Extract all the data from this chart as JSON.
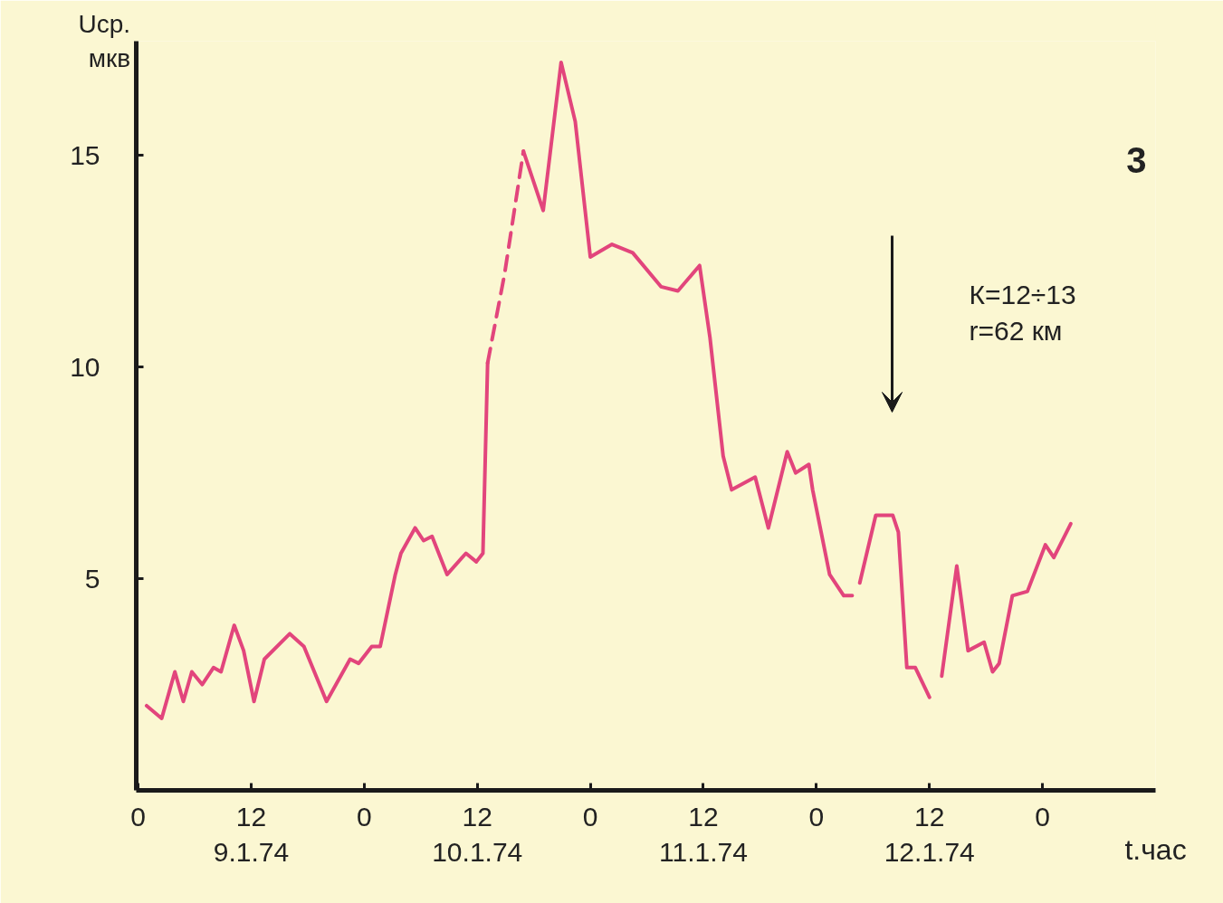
{
  "chart_data": {
    "type": "line",
    "xlabel": "t.час",
    "ylabel": "Uср. мкв",
    "xlim": [
      "1974-01-08T23:48",
      "1974-01-13T12:00"
    ],
    "ylim": [
      0,
      17.7
    ],
    "xticks": [
      {
        "value": "1974-01-09T00:00",
        "label": "0"
      },
      {
        "value": "1974-01-09T12:00",
        "label": "12\n9.1.74"
      },
      {
        "value": "1974-01-10T00:00",
        "label": "0"
      },
      {
        "value": "1974-01-10T12:00",
        "label": "12\n10.1.74"
      },
      {
        "value": "1974-01-11T00:00",
        "label": "0"
      },
      {
        "value": "1974-01-11T12:00",
        "label": "12\n11.1.74"
      },
      {
        "value": "1974-01-12T00:00",
        "label": "0"
      },
      {
        "value": "1974-01-12T12:00",
        "label": "12\n12.1.74"
      },
      {
        "value": "1974-01-13T00:00",
        "label": "0"
      }
    ],
    "yticks": [
      5,
      10,
      15
    ],
    "grid": false,
    "series": [
      {
        "color": "#e2457c",
        "line_style": "solid",
        "values": [
          2.0,
          1.7,
          2.8,
          2.1,
          2.8,
          2.5,
          2.9,
          2.8,
          3.9,
          3.3,
          2.1,
          3.1,
          3.7,
          3.4,
          2.1,
          3.1,
          3.0,
          3.4,
          3.4,
          5.1,
          5.6,
          6.2,
          5.9,
          6.0,
          5.1,
          5.6,
          5.4,
          5.6,
          10.1
        ],
        "x": [
          "1974-01-09T00:54",
          "1974-01-09T02:30",
          "1974-01-09T03:54",
          "1974-01-09T04:48",
          "1974-01-09T05:42",
          "1974-01-09T06:48",
          "1974-01-09T08:00",
          "1974-01-09T08:48",
          "1974-01-09T10:12",
          "1974-01-09T11:12",
          "1974-01-09T12:18",
          "1974-01-09T13:24",
          "1974-01-09T16:06",
          "1974-01-09T17:36",
          "1974-01-09T20:00",
          "1974-01-09T22:30",
          "1974-01-09T23:24",
          "1974-01-10T00:48",
          "1974-01-10T01:42",
          "1974-01-10T03:18",
          "1974-01-10T03:54",
          "1974-01-10T05:24",
          "1974-01-10T06:18",
          "1974-01-10T07:12",
          "1974-01-10T08:48",
          "1974-01-10T10:48",
          "1974-01-10T11:54",
          "1974-01-10T12:36",
          "1974-01-10T13:06"
        ]
      },
      {
        "color": "#e2457c",
        "line_style": "solid",
        "x": [
          "1974-01-10T16:54",
          "1974-01-10T19:00",
          "1974-01-10T20:54",
          "1974-01-10T22:24",
          "1974-01-11T00:00",
          "1974-01-11T02:18",
          "1974-01-11T04:30",
          "1974-01-11T07:30",
          "1974-01-11T09:18",
          "1974-01-11T11:36",
          "1974-01-11T12:42",
          "1974-01-11T14:06",
          "1974-01-11T15:00",
          "1974-01-11T17:30",
          "1974-01-11T18:54",
          "1974-01-11T20:54",
          "1974-01-11T21:48",
          "1974-01-11T23:12",
          "1974-01-11T23:36",
          "1974-01-12T00:30",
          "1974-01-12T01:24",
          "1974-01-12T02:54",
          "1974-01-12T03:48"
        ],
        "values": [
          15.1,
          13.7,
          17.2,
          15.8,
          12.6,
          12.9,
          12.7,
          11.9,
          11.8,
          12.4,
          10.7,
          7.9,
          7.1,
          7.4,
          6.2,
          8.0,
          7.5,
          7.7,
          7.1,
          6.1,
          5.1,
          4.6,
          4.6
        ]
      },
      {
        "color": "#e2457c",
        "line_style": "solid",
        "x": [
          "1974-01-12T04:36",
          "1974-01-12T06:18",
          "1974-01-12T08:06",
          "1974-01-12T08:42",
          "1974-01-12T09:36",
          "1974-01-12T10:30",
          "1974-01-12T12:00"
        ],
        "values": [
          4.9,
          6.5,
          6.5,
          6.1,
          2.9,
          2.9,
          2.2
        ]
      },
      {
        "color": "#e2457c",
        "line_style": "solid",
        "x": [
          "1974-01-12T13:18",
          "1974-01-12T14:54",
          "1974-01-12T16:06",
          "1974-01-12T17:48",
          "1974-01-12T18:42",
          "1974-01-12T19:24",
          "1974-01-12T20:48",
          "1974-01-12T22:24",
          "1974-01-13T00:18",
          "1974-01-13T01:12",
          "1974-01-13T03:00"
        ],
        "values": [
          2.7,
          5.3,
          3.3,
          3.5,
          2.8,
          3.0,
          4.6,
          4.7,
          5.8,
          5.5,
          6.3
        ]
      },
      {
        "color": "#e2457c",
        "line_style": "dashed",
        "x": [
          "1974-01-10T13:06",
          "1974-01-10T14:54",
          "1974-01-10T16:54"
        ],
        "values": [
          10.1,
          12.2,
          15.1
        ]
      }
    ],
    "annotations": [
      "К=12÷13\nr=62 км",
      "3"
    ]
  }
}
